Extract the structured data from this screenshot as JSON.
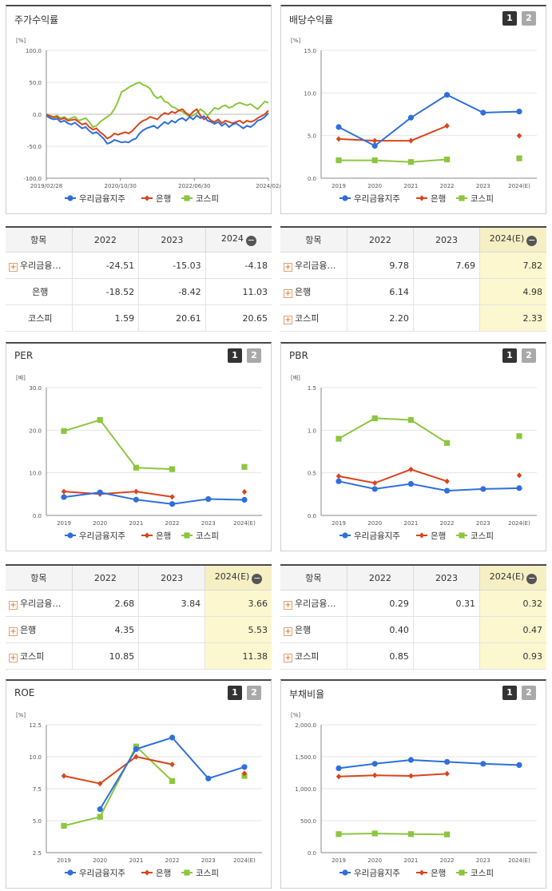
{
  "colors": {
    "woori": "#2f6fdc",
    "bank": "#d9441c",
    "kospi": "#8cc63f"
  },
  "charts": [
    {
      "id": "stock",
      "title": "주가수익률",
      "unit": "[%]",
      "buttons": [],
      "legend": [
        "우리금융지주",
        "은행",
        "코스피"
      ],
      "chart_data": {
        "type": "line",
        "ylim": [
          -100,
          100
        ],
        "y_ticks": [
          "100.0",
          "50.0",
          "0.0",
          "-50.0",
          "-100.0"
        ],
        "x_ticks": [
          "2019/02/28",
          "2020/10/30",
          "2022/06/30",
          "2024/02/"
        ],
        "series": [
          {
            "name": "우리금융지주",
            "values": [
              -2,
              -6,
              -8,
              -7,
              -12,
              -10,
              -14,
              -16,
              -13,
              -18,
              -22,
              -20,
              -26,
              -30,
              -28,
              -33,
              -38,
              -46,
              -44,
              -40,
              -42,
              -44,
              -43,
              -44,
              -40,
              -38,
              -30,
              -25,
              -22,
              -20,
              -18,
              -22,
              -17,
              -12,
              -15,
              -10,
              -13,
              -8,
              -6,
              -10,
              -4,
              -8,
              -2,
              -6,
              -3,
              -10,
              -12,
              -15,
              -12,
              -18,
              -14,
              -20,
              -16,
              -14,
              -18,
              -22,
              -18,
              -20,
              -16,
              -10,
              -8,
              -4,
              2
            ]
          },
          {
            "name": "은행",
            "values": [
              0,
              -3,
              -5,
              -4,
              -8,
              -6,
              -10,
              -9,
              -8,
              -12,
              -16,
              -14,
              -20,
              -24,
              -22,
              -28,
              -32,
              -38,
              -35,
              -30,
              -32,
              -30,
              -28,
              -30,
              -26,
              -20,
              -14,
              -10,
              -8,
              -4,
              -6,
              -8,
              -2,
              2,
              0,
              4,
              2,
              6,
              8,
              2,
              -2,
              4,
              8,
              -2,
              -8,
              -4,
              -10,
              -12,
              -8,
              -14,
              -10,
              -12,
              -14,
              -12,
              -10,
              -14,
              -10,
              -12,
              -10,
              -6,
              -3,
              0,
              6
            ]
          },
          {
            "name": "코스피",
            "values": [
              0,
              -2,
              -4,
              -2,
              -6,
              -4,
              -8,
              -6,
              -4,
              -10,
              -8,
              -6,
              -12,
              -20,
              -18,
              -12,
              -8,
              -4,
              0,
              8,
              20,
              35,
              38,
              42,
              45,
              48,
              50,
              46,
              44,
              40,
              30,
              25,
              28,
              20,
              18,
              12,
              10,
              6,
              4,
              0,
              -4,
              -2,
              2,
              8,
              4,
              -2,
              4,
              10,
              8,
              12,
              14,
              10,
              12,
              16,
              18,
              16,
              14,
              16,
              12,
              8,
              14,
              20,
              18
            ]
          }
        ]
      }
    },
    {
      "id": "dividend",
      "title": "배당수익률",
      "unit": "[%]",
      "buttons": [
        "1",
        "2"
      ],
      "legend": [
        "우리금융지주",
        "은행",
        "코스피"
      ],
      "chart_data": {
        "type": "line",
        "categories": [
          "2019",
          "2020",
          "2021",
          "2022",
          "2023",
          "2024(E)"
        ],
        "ylim": [
          0,
          15
        ],
        "y_ticks": [
          "15.0",
          "10.0",
          "5.0",
          "0.0"
        ],
        "series": [
          {
            "name": "우리금융지주",
            "values": [
              6.0,
              3.8,
              7.1,
              9.78,
              7.69,
              7.82
            ]
          },
          {
            "name": "은행",
            "values": [
              4.6,
              4.4,
              4.4,
              6.14,
              null,
              4.98
            ]
          },
          {
            "name": "코스피",
            "values": [
              2.1,
              2.1,
              1.9,
              2.2,
              null,
              2.33
            ]
          }
        ]
      }
    },
    {
      "id": "per",
      "title": "PER",
      "unit": "[배]",
      "buttons": [
        "1",
        "2"
      ],
      "legend": [
        "우리금융지주",
        "은행",
        "코스피"
      ],
      "chart_data": {
        "type": "line",
        "categories": [
          "2019",
          "2020",
          "2021",
          "2022",
          "2023",
          "2024(E)"
        ],
        "ylim": [
          0,
          30
        ],
        "y_ticks": [
          "30.0",
          "20.0",
          "10.0",
          "0.0"
        ],
        "series": [
          {
            "name": "우리금융지주",
            "values": [
              4.3,
              5.4,
              3.7,
              2.68,
              3.84,
              3.66
            ]
          },
          {
            "name": "은행",
            "values": [
              5.6,
              5.0,
              5.6,
              4.35,
              null,
              5.53
            ]
          },
          {
            "name": "코스피",
            "values": [
              19.8,
              22.4,
              11.2,
              10.85,
              null,
              11.38
            ]
          }
        ]
      }
    },
    {
      "id": "pbr",
      "title": "PBR",
      "unit": "[배]",
      "buttons": [
        "1",
        "2"
      ],
      "legend": [
        "우리금융지주",
        "은행",
        "코스피"
      ],
      "chart_data": {
        "type": "line",
        "categories": [
          "2019",
          "2020",
          "2021",
          "2022",
          "2023",
          "2024(E)"
        ],
        "ylim": [
          0,
          1.5
        ],
        "y_ticks": [
          "1.5",
          "1.0",
          "0.5",
          "0.0"
        ],
        "series": [
          {
            "name": "우리금융지주",
            "values": [
              0.4,
              0.31,
              0.37,
              0.29,
              0.31,
              0.32
            ]
          },
          {
            "name": "은행",
            "values": [
              0.46,
              0.38,
              0.54,
              0.4,
              null,
              0.47
            ]
          },
          {
            "name": "코스피",
            "values": [
              0.9,
              1.14,
              1.12,
              0.85,
              null,
              0.93
            ]
          }
        ]
      }
    },
    {
      "id": "roe",
      "title": "ROE",
      "unit": "[%]",
      "buttons": [
        "1",
        "2"
      ],
      "legend": [
        "우리금융지주",
        "은행",
        "코스피"
      ],
      "chart_data": {
        "type": "line",
        "categories": [
          "2019",
          "2020",
          "2021",
          "2022",
          "2023",
          "2024(E)"
        ],
        "ylim": [
          2.5,
          12.5
        ],
        "y_ticks": [
          "12.5",
          "10.0",
          "7.5",
          "5.0",
          "2.5"
        ],
        "series": [
          {
            "name": "우리금융지주",
            "values": [
              null,
              5.9,
              10.6,
              11.5,
              8.3,
              9.2
            ]
          },
          {
            "name": "은행",
            "values": [
              8.5,
              7.9,
              10.0,
              9.4,
              null,
              8.7
            ]
          },
          {
            "name": "코스피",
            "values": [
              4.6,
              5.3,
              10.8,
              8.1,
              null,
              8.5
            ]
          }
        ]
      }
    },
    {
      "id": "debt",
      "title": "부채비율",
      "unit": "[%]",
      "buttons": [
        "1",
        "2"
      ],
      "legend": [
        "우리금융지주",
        "은행",
        "코스피"
      ],
      "chart_data": {
        "type": "line",
        "categories": [
          "2019",
          "2020",
          "2021",
          "2022",
          "2023",
          "2024(E)"
        ],
        "ylim": [
          0,
          2000
        ],
        "y_ticks": [
          "2,000.0",
          "1,500.0",
          "1,000.0",
          "500.0",
          "0.0"
        ],
        "series": [
          {
            "name": "우리금융지주",
            "values": [
              1320,
              1390,
              1450,
              1420,
              1390,
              1370
            ]
          },
          {
            "name": "은행",
            "values": [
              1190,
              1210,
              1200,
              1235,
              null,
              null
            ]
          },
          {
            "name": "코스피",
            "values": [
              290,
              300,
              290,
              285,
              null,
              null
            ]
          }
        ]
      }
    }
  ],
  "tables": [
    {
      "id": "t_stock",
      "headers": [
        "항목",
        "2022",
        "2023",
        "2024"
      ],
      "header_minus": true,
      "highlight_last": false,
      "rows": [
        {
          "name": "우리금융…",
          "plus": true,
          "values": [
            "-24.51",
            "-15.03",
            "-4.18"
          ]
        },
        {
          "name": "은행",
          "plus": false,
          "values": [
            "-18.52",
            "-8.42",
            "11.03"
          ]
        },
        {
          "name": "코스피",
          "plus": false,
          "values": [
            "1.59",
            "20.61",
            "20.65"
          ]
        }
      ]
    },
    {
      "id": "t_dividend",
      "headers": [
        "항목",
        "2022",
        "2023",
        "2024(E)"
      ],
      "header_minus": true,
      "highlight_last": true,
      "rows": [
        {
          "name": "우리금융…",
          "plus": true,
          "values": [
            "9.78",
            "7.69",
            "7.82"
          ]
        },
        {
          "name": "은행",
          "plus": true,
          "values": [
            "6.14",
            "",
            "4.98"
          ]
        },
        {
          "name": "코스피",
          "plus": true,
          "values": [
            "2.20",
            "",
            "2.33"
          ]
        }
      ]
    },
    {
      "id": "t_per",
      "headers": [
        "항목",
        "2022",
        "2023",
        "2024(E)"
      ],
      "header_minus": true,
      "highlight_last": true,
      "rows": [
        {
          "name": "우리금융…",
          "plus": true,
          "values": [
            "2.68",
            "3.84",
            "3.66"
          ]
        },
        {
          "name": "은행",
          "plus": true,
          "values": [
            "4.35",
            "",
            "5.53"
          ]
        },
        {
          "name": "코스피",
          "plus": true,
          "values": [
            "10.85",
            "",
            "11.38"
          ]
        }
      ]
    },
    {
      "id": "t_pbr",
      "headers": [
        "항목",
        "2022",
        "2023",
        "2024(E)"
      ],
      "header_minus": true,
      "highlight_last": true,
      "rows": [
        {
          "name": "우리금융…",
          "plus": true,
          "values": [
            "0.29",
            "0.31",
            "0.32"
          ]
        },
        {
          "name": "은행",
          "plus": true,
          "values": [
            "0.40",
            "",
            "0.47"
          ]
        },
        {
          "name": "코스피",
          "plus": true,
          "values": [
            "0.85",
            "",
            "0.93"
          ]
        }
      ]
    }
  ]
}
